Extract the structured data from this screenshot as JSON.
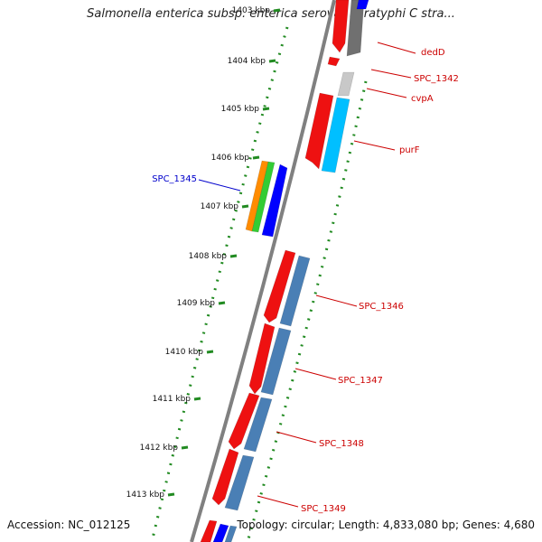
{
  "title": "Salmonella enterica subsp. enterica serovar Paratyphi C stra...",
  "accession": "Accession: NC_012125",
  "topology": "Topology: circular; Length: 4,833,080 bp; Genes: 4,680",
  "ticks": [
    {
      "label": "1403 kbp",
      "kbp": 1403
    },
    {
      "label": "1404 kbp",
      "kbp": 1404
    },
    {
      "label": "1405 kbp",
      "kbp": 1405
    },
    {
      "label": "1406 kbp",
      "kbp": 1406
    },
    {
      "label": "1407 kbp",
      "kbp": 1407
    },
    {
      "label": "1408 kbp",
      "kbp": 1408
    },
    {
      "label": "1409 kbp",
      "kbp": 1409
    },
    {
      "label": "1410 kbp",
      "kbp": 1410
    },
    {
      "label": "1411 kbp",
      "kbp": 1411
    },
    {
      "label": "1412 kbp",
      "kbp": 1412
    },
    {
      "label": "1413 kbp",
      "kbp": 1413
    }
  ],
  "gene_labels": [
    {
      "text": "dedD",
      "color": "#cc0000"
    },
    {
      "text": "SPC_1342",
      "color": "#cc0000"
    },
    {
      "text": "cvpA",
      "color": "#cc0000"
    },
    {
      "text": "purF",
      "color": "#cc0000"
    },
    {
      "text": "SPC_1345",
      "color": "#0000cc"
    },
    {
      "text": "SPC_1346",
      "color": "#cc0000"
    },
    {
      "text": "SPC_1347",
      "color": "#cc0000"
    },
    {
      "text": "SPC_1348",
      "color": "#cc0000"
    },
    {
      "text": "SPC_1349",
      "color": "#cc0000"
    }
  ],
  "colors": {
    "backbone": "#808080",
    "dots": "#228b22",
    "cds": "#ee1111",
    "cds_alt": "#4a7fb5",
    "gray": "#707070",
    "light_gray": "#c8c8c8",
    "cyan": "#00bfff",
    "blue": "#0000ff",
    "orange": "#ff8c00",
    "green": "#33cc33"
  }
}
